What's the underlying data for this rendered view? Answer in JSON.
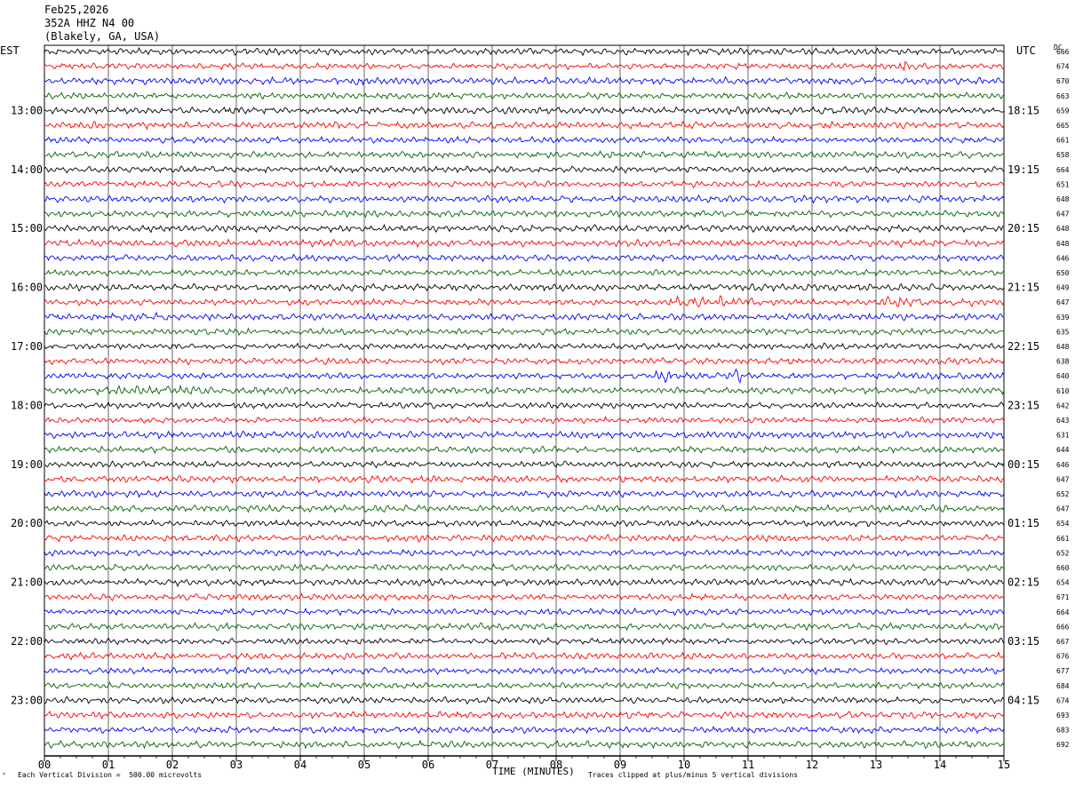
{
  "header": {
    "date": "Feb25,2026",
    "station": "352A HHZ N4 00",
    "location": "(Blakely, GA, USA)"
  },
  "left_zone_label": "EST",
  "right_zone_label": "UTC",
  "dc_label": "DC",
  "footer": {
    "scale_note": "Each Vertical Division =  500.00 microvolts",
    "xlabel": "TIME (MINUTES)",
    "clip_note": "Traces clipped at plus/minus 5 vertical divisions",
    "corner_mark": "ᴬ"
  },
  "colors": {
    "trace_cycle": [
      "#000000",
      "#ff0000",
      "#0000ff",
      "#006400"
    ],
    "grid": "#000000"
  },
  "chart_data": {
    "type": "line",
    "title": "Feb25,2026 352A HHZ N4 00 (Blakely, GA, USA)",
    "xlabel": "TIME (MINUTES)",
    "xlim": [
      0,
      15
    ],
    "x_ticks": [
      "00",
      "01",
      "02",
      "03",
      "04",
      "05",
      "06",
      "07",
      "08",
      "09",
      "10",
      "11",
      "12",
      "13",
      "14",
      "15"
    ],
    "rows_per_hour": 4,
    "est_hour_labels": [
      "13:00",
      "14:00",
      "15:00",
      "16:00",
      "17:00",
      "18:00",
      "19:00",
      "20:00",
      "21:00",
      "22:00",
      "23:00"
    ],
    "utc_hour_labels": [
      "18:15",
      "19:15",
      "20:15",
      "21:15",
      "22:15",
      "23:15",
      "00:15",
      "01:15",
      "02:15",
      "03:15",
      "04:15"
    ],
    "first_labeled_row": 4,
    "dc_offsets": [
      666,
      674,
      670,
      663,
      659,
      665,
      661,
      658,
      664,
      651,
      648,
      647,
      648,
      648,
      646,
      650,
      649,
      647,
      639,
      635,
      648,
      638,
      640,
      610,
      642,
      643,
      631,
      644,
      646,
      647,
      652,
      647,
      654,
      661,
      652,
      660,
      654,
      671,
      664,
      666,
      667,
      676,
      677,
      684,
      674,
      693,
      683,
      692
    ],
    "events": [
      {
        "row": 1,
        "start": 13.3,
        "end": 13.6,
        "amp": 2.2
      },
      {
        "row": 2,
        "start": 4.8,
        "end": 5.15,
        "amp": 2.0
      },
      {
        "row": 2,
        "start": 1.2,
        "end": 1.6,
        "amp": 1.2
      },
      {
        "row": 5,
        "start": 0.6,
        "end": 0.9,
        "amp": 1.4
      },
      {
        "row": 5,
        "start": 4.2,
        "end": 4.8,
        "amp": 1.3
      },
      {
        "row": 16,
        "start": 6.3,
        "end": 6.7,
        "amp": 1.3
      },
      {
        "row": 16,
        "start": 7.8,
        "end": 8.2,
        "amp": 1.2
      },
      {
        "row": 17,
        "start": 9.5,
        "end": 11.2,
        "amp": 2.4
      },
      {
        "row": 17,
        "start": 12.9,
        "end": 13.8,
        "amp": 2.0
      },
      {
        "row": 17,
        "start": 14.0,
        "end": 15.0,
        "amp": 1.4
      },
      {
        "row": 18,
        "start": 0.0,
        "end": 3.0,
        "amp": 1.3
      },
      {
        "row": 22,
        "start": 9.5,
        "end": 9.9,
        "amp": 2.2
      },
      {
        "row": 22,
        "start": 10.7,
        "end": 10.9,
        "amp": 3.2
      },
      {
        "row": 22,
        "start": 12.8,
        "end": 15.0,
        "amp": 1.5
      },
      {
        "row": 23,
        "start": 0.0,
        "end": 3.5,
        "amp": 1.6
      },
      {
        "row": 25,
        "start": 10.7,
        "end": 10.9,
        "amp": 1.4
      },
      {
        "row": 26,
        "start": 10.7,
        "end": 10.9,
        "amp": 1.5
      },
      {
        "row": 39,
        "start": 7.3,
        "end": 7.5,
        "amp": 1.4
      },
      {
        "row": 42,
        "start": 5.1,
        "end": 5.4,
        "amp": 1.6
      }
    ]
  }
}
